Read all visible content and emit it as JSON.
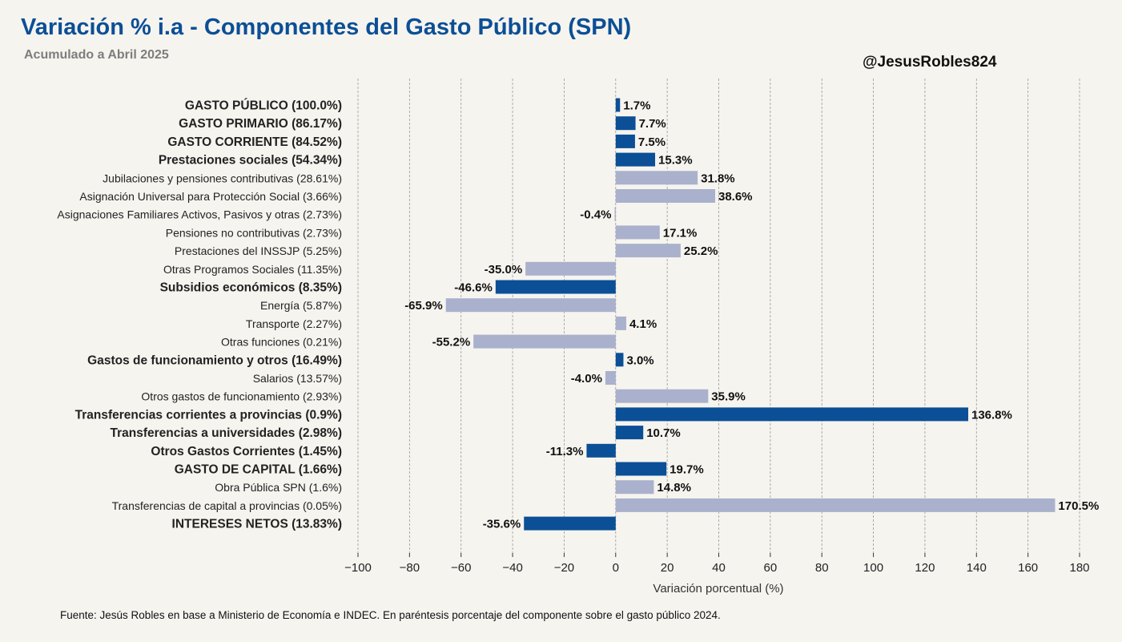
{
  "header": {
    "title": "Variación % i.a - Componentes del Gasto Público (SPN)",
    "subtitle": "Acumulado a Abril 2025",
    "handle": "@JesusRobles824"
  },
  "footer": {
    "source": "Fuente: Jesús Robles en base a Ministerio de Economía e INDEC. En paréntesis porcentaje del componente sobre el gasto público 2024."
  },
  "colors": {
    "main": "#0b4f96",
    "sub": "#aab1cd",
    "title": "#0b4f96",
    "grid": "#999999",
    "background": "#f6f4ef"
  },
  "chart_data": {
    "type": "bar",
    "orientation": "horizontal",
    "title": "Variación % i.a - Componentes del Gasto Público (SPN)",
    "subtitle": "Acumulado a Abril 2025",
    "xlabel": "Variación porcentual (%)",
    "xlim": [
      -100,
      180
    ],
    "xticks": [
      -100,
      -80,
      -60,
      -40,
      -20,
      0,
      20,
      40,
      60,
      80,
      100,
      120,
      140,
      160,
      180
    ],
    "xtick_labels": [
      "−100",
      "−80",
      "−60",
      "−40",
      "−20",
      "0",
      "20",
      "40",
      "60",
      "80",
      "100",
      "120",
      "140",
      "160",
      "180"
    ],
    "grid": "vertical dashed",
    "categories": [
      "GASTO PÚBLICO (100.0%)",
      "GASTO PRIMARIO (86.17%)",
      "GASTO CORRIENTE (84.52%)",
      "Prestaciones sociales (54.34%)",
      "Jubilaciones y pensiones contributivas (28.61%)",
      "Asignación Universal para Protección Social (3.66%)",
      "Asignaciones Familiares Activos, Pasivos y otras (2.73%)",
      "Pensiones no contributivas (2.73%)",
      "Prestaciones del INSSJP (5.25%)",
      "Otras Programos Sociales (11.35%)",
      "Subsidios económicos (8.35%)",
      "Energía (5.87%)",
      "Transporte (2.27%)",
      "Otras funciones (0.21%)",
      "Gastos de funcionamiento y otros (16.49%)",
      "Salarios (13.57%)",
      "Otros gastos de funcionamiento (2.93%)",
      "Transferencias corrientes a provincias (0.9%)",
      "Transferencias a universidades (2.98%)",
      "Otros Gastos Corrientes (1.45%)",
      "GASTO DE CAPITAL (1.66%)",
      "Obra Pública SPN (1.6%)",
      "Transferencias de capital a provincias (0.05%)",
      "INTERESES NETOS (13.83%)"
    ],
    "values": [
      1.7,
      7.7,
      7.5,
      15.3,
      31.8,
      38.6,
      -0.4,
      17.1,
      25.2,
      -35.0,
      -46.6,
      -65.9,
      4.1,
      -55.2,
      3.0,
      -4.0,
      35.9,
      136.8,
      10.7,
      -11.3,
      19.7,
      14.8,
      170.5,
      -35.6
    ],
    "value_labels": [
      "1.7%",
      "7.7%",
      "7.5%",
      "15.3%",
      "31.8%",
      "38.6%",
      "-0.4%",
      "17.1%",
      "25.2%",
      "-35.0%",
      "-46.6%",
      "-65.9%",
      "4.1%",
      "-55.2%",
      "3.0%",
      "-4.0%",
      "35.9%",
      "136.8%",
      "10.7%",
      "-11.3%",
      "19.7%",
      "14.8%",
      "170.5%",
      "-35.6%"
    ],
    "is_main": [
      true,
      true,
      true,
      true,
      false,
      false,
      false,
      false,
      false,
      false,
      true,
      false,
      false,
      false,
      true,
      false,
      false,
      true,
      true,
      true,
      true,
      false,
      false,
      true
    ]
  }
}
